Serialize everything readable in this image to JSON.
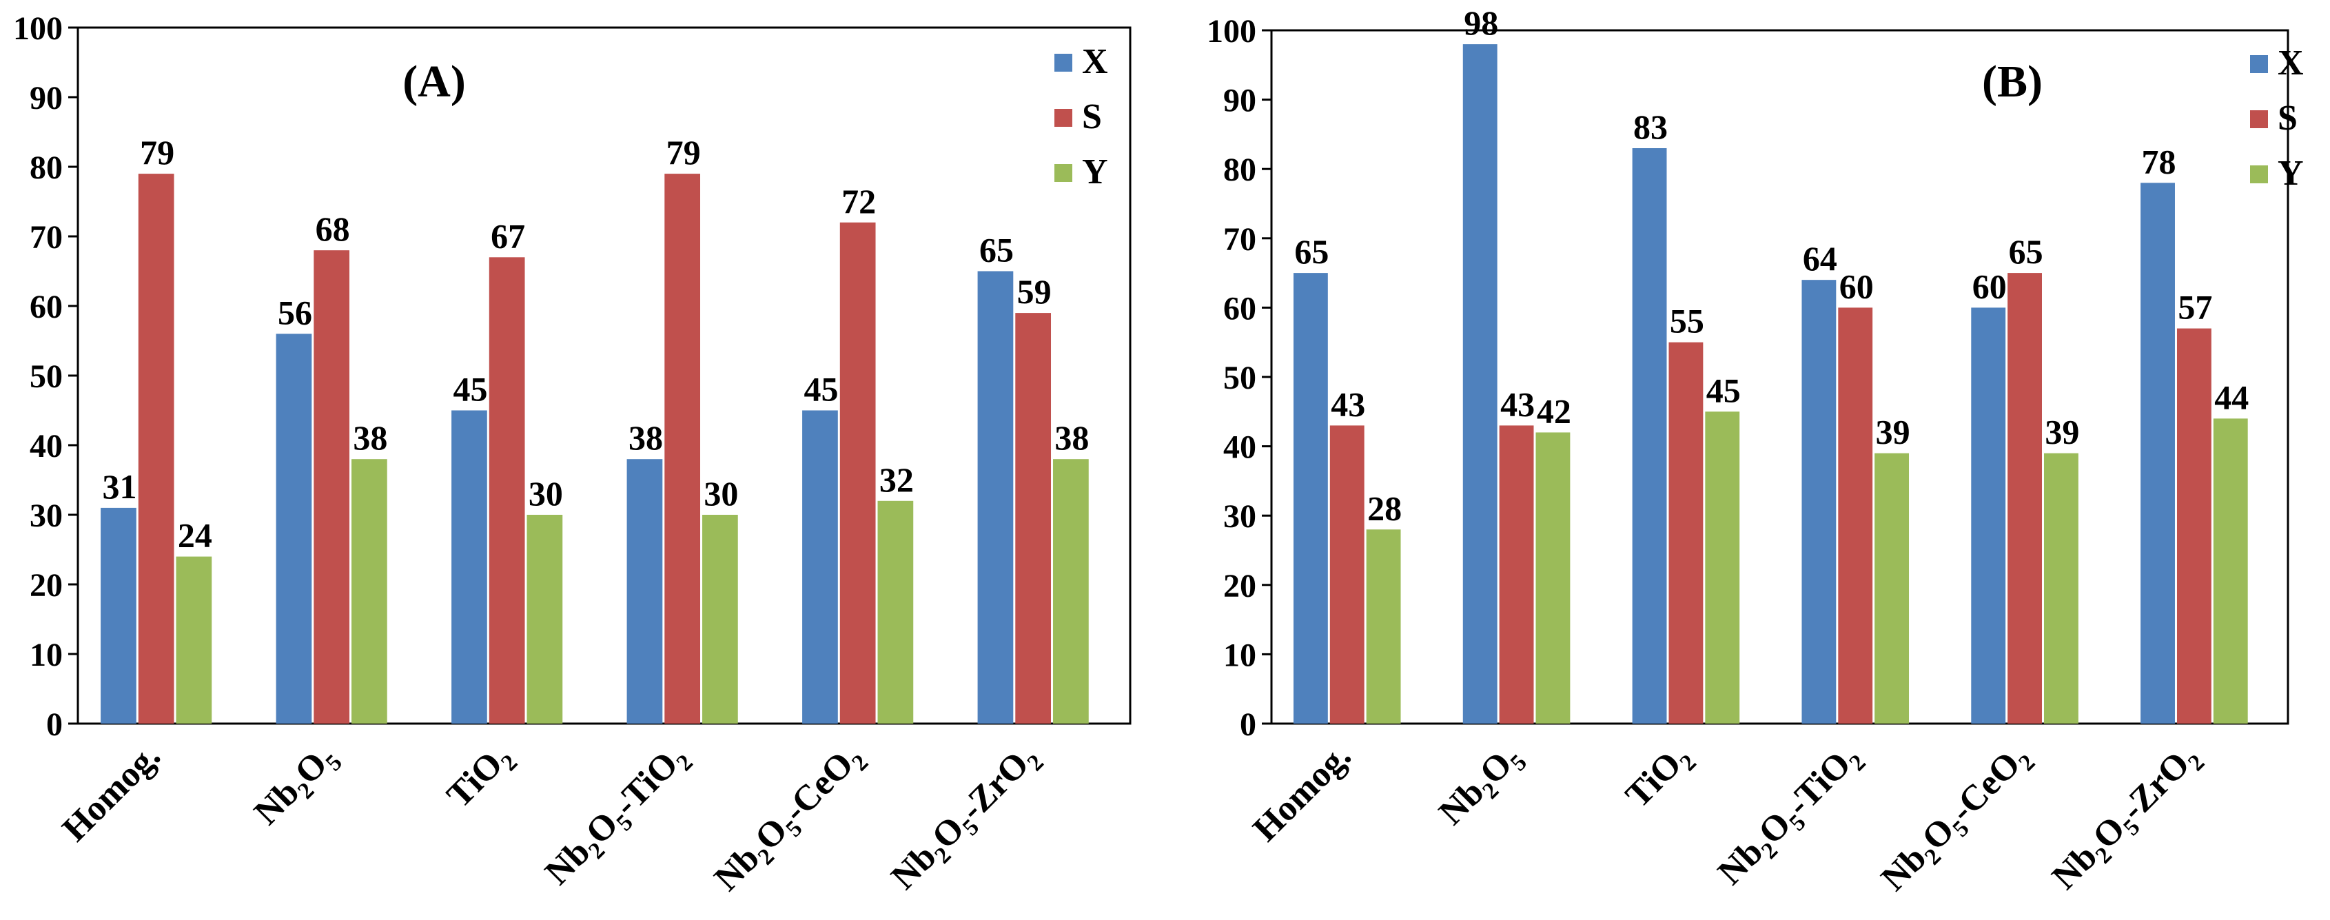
{
  "colors": {
    "series_x": "#4F81BD",
    "series_s": "#C0504D",
    "series_y": "#9BBB59",
    "axis": "#000000"
  },
  "chart_data": [
    {
      "type": "bar",
      "title": "(A)",
      "categories": [
        "Homog.",
        "Nb2O5",
        "TiO2",
        "Nb2O5-TiO2",
        "Nb2O5-CeO2",
        "Nb2O5-ZrO2"
      ],
      "series": [
        {
          "name": "X",
          "values": [
            31,
            56,
            45,
            38,
            45,
            65
          ]
        },
        {
          "name": "S",
          "values": [
            79,
            68,
            67,
            79,
            72,
            59
          ]
        },
        {
          "name": "Y",
          "values": [
            24,
            38,
            30,
            30,
            32,
            38
          ]
        }
      ],
      "ylim": [
        0,
        100
      ],
      "yticks": [
        0,
        10,
        20,
        30,
        40,
        50,
        60,
        70,
        80,
        90,
        100
      ],
      "xlabel": "",
      "ylabel": "",
      "legend_position": "top-right",
      "grid": false
    },
    {
      "type": "bar",
      "title": "(B)",
      "categories": [
        "Homog.",
        "Nb2O5",
        "TiO2",
        "Nb2O5-TiO2",
        "Nb2O5-CeO2",
        "Nb2O5-ZrO2"
      ],
      "series": [
        {
          "name": "X",
          "values": [
            65,
            98,
            83,
            64,
            60,
            78
          ]
        },
        {
          "name": "S",
          "values": [
            43,
            43,
            55,
            60,
            65,
            57
          ]
        },
        {
          "name": "Y",
          "values": [
            28,
            42,
            45,
            39,
            39,
            44
          ]
        }
      ],
      "ylim": [
        0,
        100
      ],
      "yticks": [
        0,
        10,
        20,
        30,
        40,
        50,
        60,
        70,
        80,
        90,
        100
      ],
      "xlabel": "",
      "ylabel": "",
      "legend_position": "top-right",
      "grid": false
    }
  ]
}
